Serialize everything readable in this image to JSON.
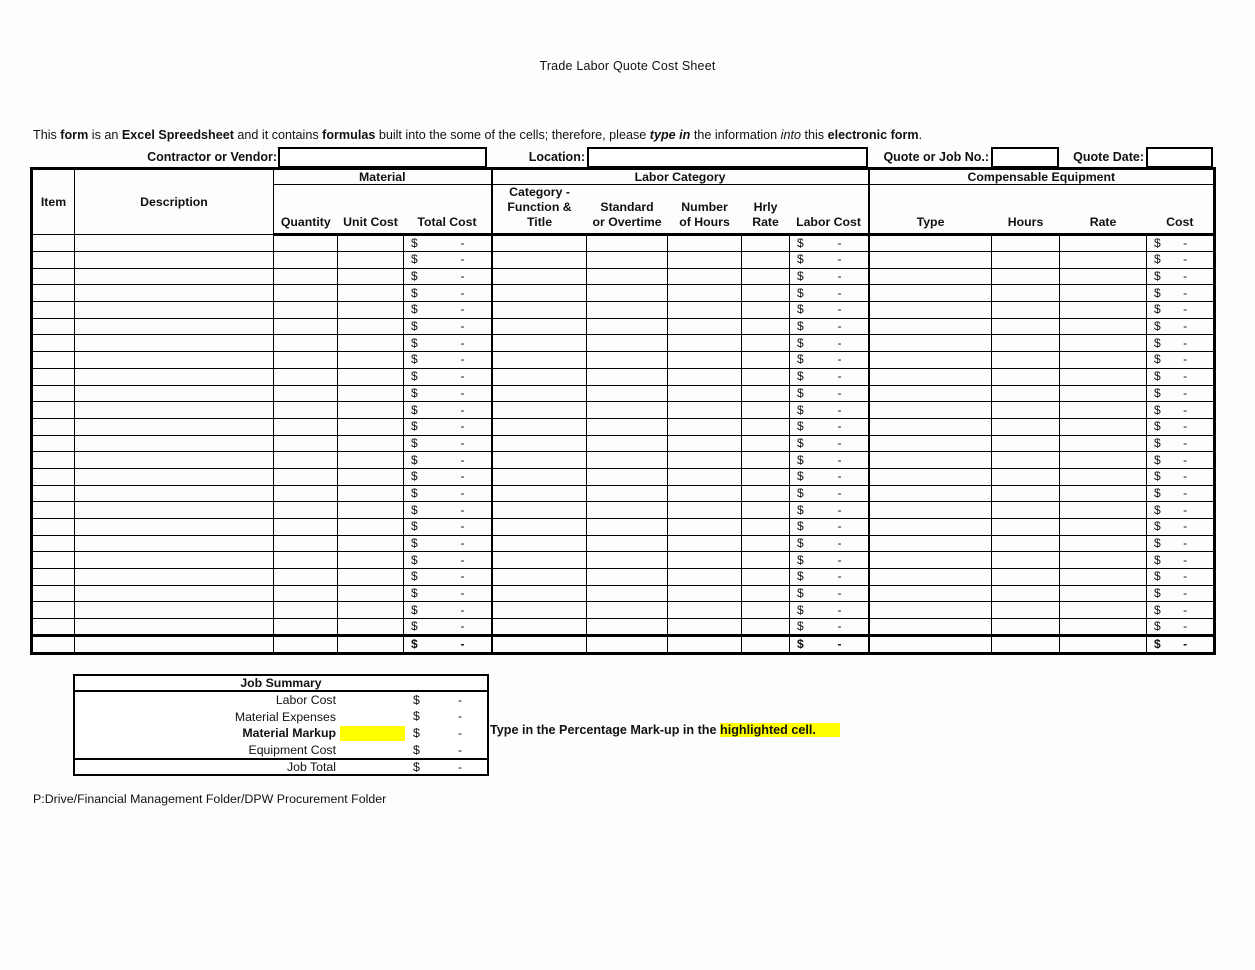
{
  "page": {
    "title": "Trade Labor Quote Cost Sheet",
    "footer_path": "P:Drive/Financial Management Folder/DPW Procurement Folder"
  },
  "intro_segments": [
    {
      "t": "This ",
      "s": ""
    },
    {
      "t": "form",
      "s": "b"
    },
    {
      "t": " is an ",
      "s": ""
    },
    {
      "t": "Excel Spreedsheet",
      "s": "b"
    },
    {
      "t": " and it contains ",
      "s": ""
    },
    {
      "t": "formulas",
      "s": "b"
    },
    {
      "t": " built into the some of the cells; therefore, please ",
      "s": ""
    },
    {
      "t": "type in",
      "s": "bi"
    },
    {
      "t": " the information ",
      "s": ""
    },
    {
      "t": "into",
      "s": "i"
    },
    {
      "t": " this ",
      "s": ""
    },
    {
      "t": "electronic form",
      "s": "b"
    },
    {
      "t": ".",
      "s": ""
    }
  ],
  "form": {
    "contractor_label": "Contractor or Vendor:",
    "contractor_value": "",
    "location_label": "Location:",
    "location_value": "",
    "quote_no_label": "Quote or Job No.:",
    "quote_no_value": "",
    "quote_date_label": "Quote Date:",
    "quote_date_value": ""
  },
  "table": {
    "groups": {
      "material": "Material",
      "labor": "Labor Category",
      "equipment": "Compensable Equipment"
    },
    "headers": {
      "item": "Item",
      "description": "Description",
      "quantity": "Quantity",
      "unit_cost": "Unit Cost",
      "total_cost": "Total Cost",
      "category": "Category -\nFunction &\nTitle",
      "standard_overtime": "Standard\nor Overtime",
      "number_hours": "Number\nof Hours",
      "hrly_rate": "Hrly\nRate",
      "labor_cost": "Labor Cost",
      "type": "Type",
      "hours": "Hours",
      "rate": "Rate",
      "cost": "Cost"
    },
    "row_count": 24,
    "currency_symbol": "$",
    "zero_value": "-"
  },
  "job_summary": {
    "title": "Job Summary",
    "rows": [
      {
        "label": "Labor Cost",
        "bold": false,
        "highlight": false
      },
      {
        "label": "Material Expenses",
        "bold": false,
        "highlight": false
      },
      {
        "label": "Material Markup",
        "bold": true,
        "highlight": true
      },
      {
        "label": "Equipment Cost",
        "bold": false,
        "highlight": false
      }
    ],
    "total_label": "Job Total",
    "currency_symbol": "$",
    "zero_value": "-"
  },
  "instruction_segments": [
    {
      "t": "Type in the Percentage Mark-up in the ",
      "s": ""
    },
    {
      "t": "highlighted cell.",
      "s": "hl"
    }
  ],
  "colors": {
    "highlight": "#ffff00",
    "border": "#000000",
    "text": "#111111",
    "background": "#fdfdfd"
  }
}
